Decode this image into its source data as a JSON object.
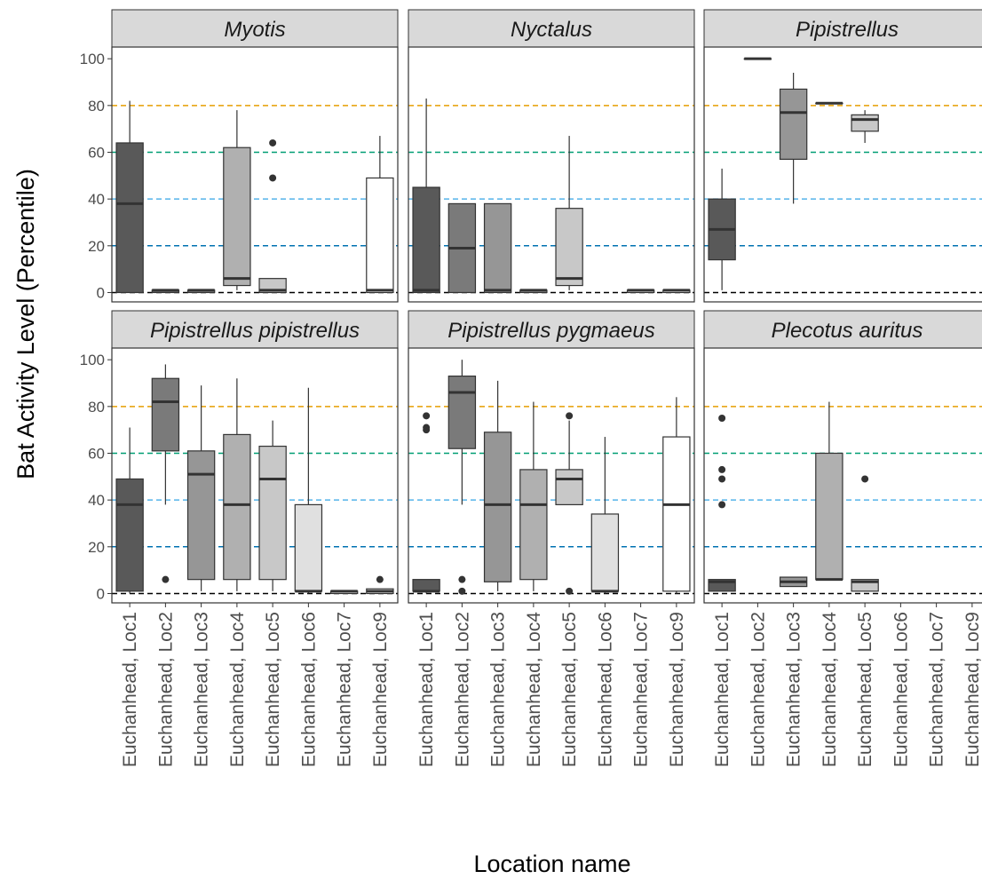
{
  "chart_data": {
    "type": "box",
    "xlabel": "Location name",
    "ylabel": "Bat Activity Level (Percentile)",
    "ylim": [
      -4,
      105
    ],
    "yticks": [
      0,
      20,
      40,
      60,
      80,
      100
    ],
    "grid": false,
    "facet_layout": "3 columns x 2 rows",
    "categories": [
      "Euchanhead, Loc1",
      "Euchanhead, Loc2",
      "Euchanhead, Loc3",
      "Euchanhead, Loc4",
      "Euchanhead, Loc5",
      "Euchanhead, Loc6",
      "Euchanhead, Loc7",
      "Euchanhead, Loc9"
    ],
    "category_fills": [
      "#595959",
      "#7a7a7a",
      "#969696",
      "#b0b0b0",
      "#c8c8c8",
      "#e0e0e0",
      "#eeeeee",
      "#ffffff"
    ],
    "reference_lines": [
      {
        "y": 0,
        "color": "#000000"
      },
      {
        "y": 20,
        "color": "#0072B2"
      },
      {
        "y": 40,
        "color": "#56B4E9"
      },
      {
        "y": 60,
        "color": "#009E73"
      },
      {
        "y": 80,
        "color": "#E69F00"
      }
    ],
    "panels": [
      {
        "title": "Myotis",
        "boxes": [
          {
            "category": "Euchanhead, Loc1",
            "min": 0,
            "q1": 0,
            "median": 38,
            "q3": 64,
            "max": 82,
            "outliers": []
          },
          {
            "category": "Euchanhead, Loc2",
            "min": 0,
            "q1": 0,
            "median": 1,
            "q3": 1,
            "max": 1,
            "outliers": []
          },
          {
            "category": "Euchanhead, Loc3",
            "min": 0,
            "q1": 0,
            "median": 1,
            "q3": 1,
            "max": 1,
            "outliers": []
          },
          {
            "category": "Euchanhead, Loc4",
            "min": 1,
            "q1": 3,
            "median": 6,
            "q3": 62,
            "max": 78,
            "outliers": []
          },
          {
            "category": "Euchanhead, Loc5",
            "min": 0,
            "q1": 0,
            "median": 1,
            "q3": 6,
            "max": 6,
            "outliers": [
              49,
              64
            ]
          },
          {
            "category": "Euchanhead, Loc9",
            "min": 0,
            "q1": 0,
            "median": 1,
            "q3": 49,
            "max": 67,
            "outliers": []
          }
        ]
      },
      {
        "title": "Nyctalus",
        "boxes": [
          {
            "category": "Euchanhead, Loc1",
            "min": 0,
            "q1": 0,
            "median": 1,
            "q3": 45,
            "max": 83,
            "outliers": []
          },
          {
            "category": "Euchanhead, Loc2",
            "min": 0,
            "q1": 0,
            "median": 19,
            "q3": 38,
            "max": 38,
            "outliers": []
          },
          {
            "category": "Euchanhead, Loc3",
            "min": 0,
            "q1": 0,
            "median": 1,
            "q3": 38,
            "max": 38,
            "outliers": []
          },
          {
            "category": "Euchanhead, Loc4",
            "min": 0,
            "q1": 0,
            "median": 1,
            "q3": 1,
            "max": 1,
            "outliers": []
          },
          {
            "category": "Euchanhead, Loc5",
            "min": 1,
            "q1": 3,
            "median": 6,
            "q3": 36,
            "max": 67,
            "outliers": []
          },
          {
            "category": "Euchanhead, Loc7",
            "min": 0,
            "q1": 0,
            "median": 1,
            "q3": 1,
            "max": 1,
            "outliers": []
          },
          {
            "category": "Euchanhead, Loc9",
            "min": 0,
            "q1": 0,
            "median": 1,
            "q3": 1,
            "max": 1,
            "outliers": []
          }
        ]
      },
      {
        "title": "Pipistrellus",
        "boxes": [
          {
            "category": "Euchanhead, Loc1",
            "min": 1,
            "q1": 14,
            "median": 27,
            "q3": 40,
            "max": 53,
            "outliers": []
          },
          {
            "category": "Euchanhead, Loc2",
            "min": 100,
            "q1": 100,
            "median": 100,
            "q3": 100,
            "max": 100,
            "outliers": []
          },
          {
            "category": "Euchanhead, Loc3",
            "min": 38,
            "q1": 57,
            "median": 77,
            "q3": 87,
            "max": 94,
            "outliers": []
          },
          {
            "category": "Euchanhead, Loc4",
            "min": 81,
            "q1": 81,
            "median": 81,
            "q3": 81,
            "max": 81,
            "outliers": []
          },
          {
            "category": "Euchanhead, Loc5",
            "min": 64,
            "q1": 69,
            "median": 74,
            "q3": 76,
            "max": 78,
            "outliers": []
          }
        ]
      },
      {
        "title": "Pipistrellus pipistrellus",
        "boxes": [
          {
            "category": "Euchanhead, Loc1",
            "min": 0,
            "q1": 1,
            "median": 38,
            "q3": 49,
            "max": 71,
            "outliers": []
          },
          {
            "category": "Euchanhead, Loc2",
            "min": 38,
            "q1": 61,
            "median": 82,
            "q3": 92,
            "max": 98,
            "outliers": [
              6
            ]
          },
          {
            "category": "Euchanhead, Loc3",
            "min": 1,
            "q1": 6,
            "median": 51,
            "q3": 61,
            "max": 89,
            "outliers": []
          },
          {
            "category": "Euchanhead, Loc4",
            "min": 1,
            "q1": 6,
            "median": 38,
            "q3": 68,
            "max": 92,
            "outliers": []
          },
          {
            "category": "Euchanhead, Loc5",
            "min": 1,
            "q1": 6,
            "median": 49,
            "q3": 63,
            "max": 74,
            "outliers": []
          },
          {
            "category": "Euchanhead, Loc6",
            "min": 0,
            "q1": 1,
            "median": 1,
            "q3": 38,
            "max": 88,
            "outliers": []
          },
          {
            "category": "Euchanhead, Loc7",
            "min": 0,
            "q1": 0,
            "median": 1,
            "q3": 1,
            "max": 1,
            "outliers": []
          },
          {
            "category": "Euchanhead, Loc9",
            "min": 0,
            "q1": 0,
            "median": 1,
            "q3": 2,
            "max": 2,
            "outliers": [
              6
            ]
          }
        ]
      },
      {
        "title": "Pipistrellus pygmaeus",
        "boxes": [
          {
            "category": "Euchanhead, Loc1",
            "min": 0,
            "q1": 1,
            "median": 1,
            "q3": 6,
            "max": 6,
            "outliers": [
              70,
              71,
              76
            ]
          },
          {
            "category": "Euchanhead, Loc2",
            "min": 38,
            "q1": 62,
            "median": 86,
            "q3": 93,
            "max": 100,
            "outliers": [
              1,
              6
            ]
          },
          {
            "category": "Euchanhead, Loc3",
            "min": 1,
            "q1": 5,
            "median": 38,
            "q3": 69,
            "max": 91,
            "outliers": []
          },
          {
            "category": "Euchanhead, Loc4",
            "min": 1,
            "q1": 6,
            "median": 38,
            "q3": 53,
            "max": 82,
            "outliers": []
          },
          {
            "category": "Euchanhead, Loc5",
            "min": 38,
            "q1": 38,
            "median": 49,
            "q3": 53,
            "max": 74,
            "outliers": [
              1,
              76
            ]
          },
          {
            "category": "Euchanhead, Loc6",
            "min": 0,
            "q1": 1,
            "median": 1,
            "q3": 34,
            "max": 67,
            "outliers": []
          },
          {
            "category": "Euchanhead, Loc9",
            "min": 0,
            "q1": 1,
            "median": 38,
            "q3": 67,
            "max": 84,
            "outliers": []
          }
        ]
      },
      {
        "title": "Plecotus auritus",
        "boxes": [
          {
            "category": "Euchanhead, Loc1",
            "min": 1,
            "q1": 1,
            "median": 5,
            "q3": 6,
            "max": 6,
            "outliers": [
              38,
              49,
              53,
              75
            ]
          },
          {
            "category": "Euchanhead, Loc3",
            "min": 3,
            "q1": 3,
            "median": 5,
            "q3": 7,
            "max": 7,
            "outliers": []
          },
          {
            "category": "Euchanhead, Loc4",
            "min": 6,
            "q1": 6,
            "median": 6,
            "q3": 60,
            "max": 82,
            "outliers": []
          },
          {
            "category": "Euchanhead, Loc5",
            "min": 1,
            "q1": 1,
            "median": 5,
            "q3": 6,
            "max": 6,
            "outliers": [
              49
            ]
          }
        ]
      }
    ]
  }
}
